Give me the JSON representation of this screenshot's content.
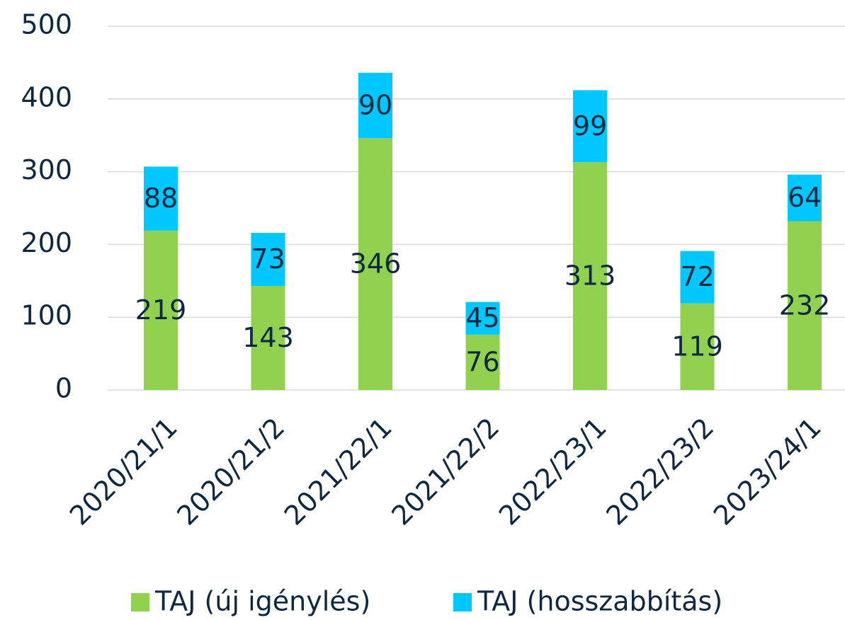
{
  "chart_data": {
    "type": "stacked_bar",
    "categories": [
      "2020/21/1",
      "2020/21/2",
      "2021/22/1",
      "2021/22/2",
      "2022/23/1",
      "2022/23/2",
      "2023/24/1"
    ],
    "series": [
      {
        "name": "TAJ (új igénylés)",
        "color": "#92d050",
        "values": [
          219,
          143,
          346,
          76,
          313,
          119,
          232
        ]
      },
      {
        "name": "TAJ (hosszabbítás)",
        "color": "#00c8ff",
        "values": [
          88,
          73,
          90,
          45,
          99,
          72,
          64
        ]
      }
    ],
    "ylim": [
      0,
      500
    ],
    "yticks": [
      0,
      100,
      200,
      300,
      400,
      500
    ],
    "grid": true,
    "legend": "bottom"
  }
}
